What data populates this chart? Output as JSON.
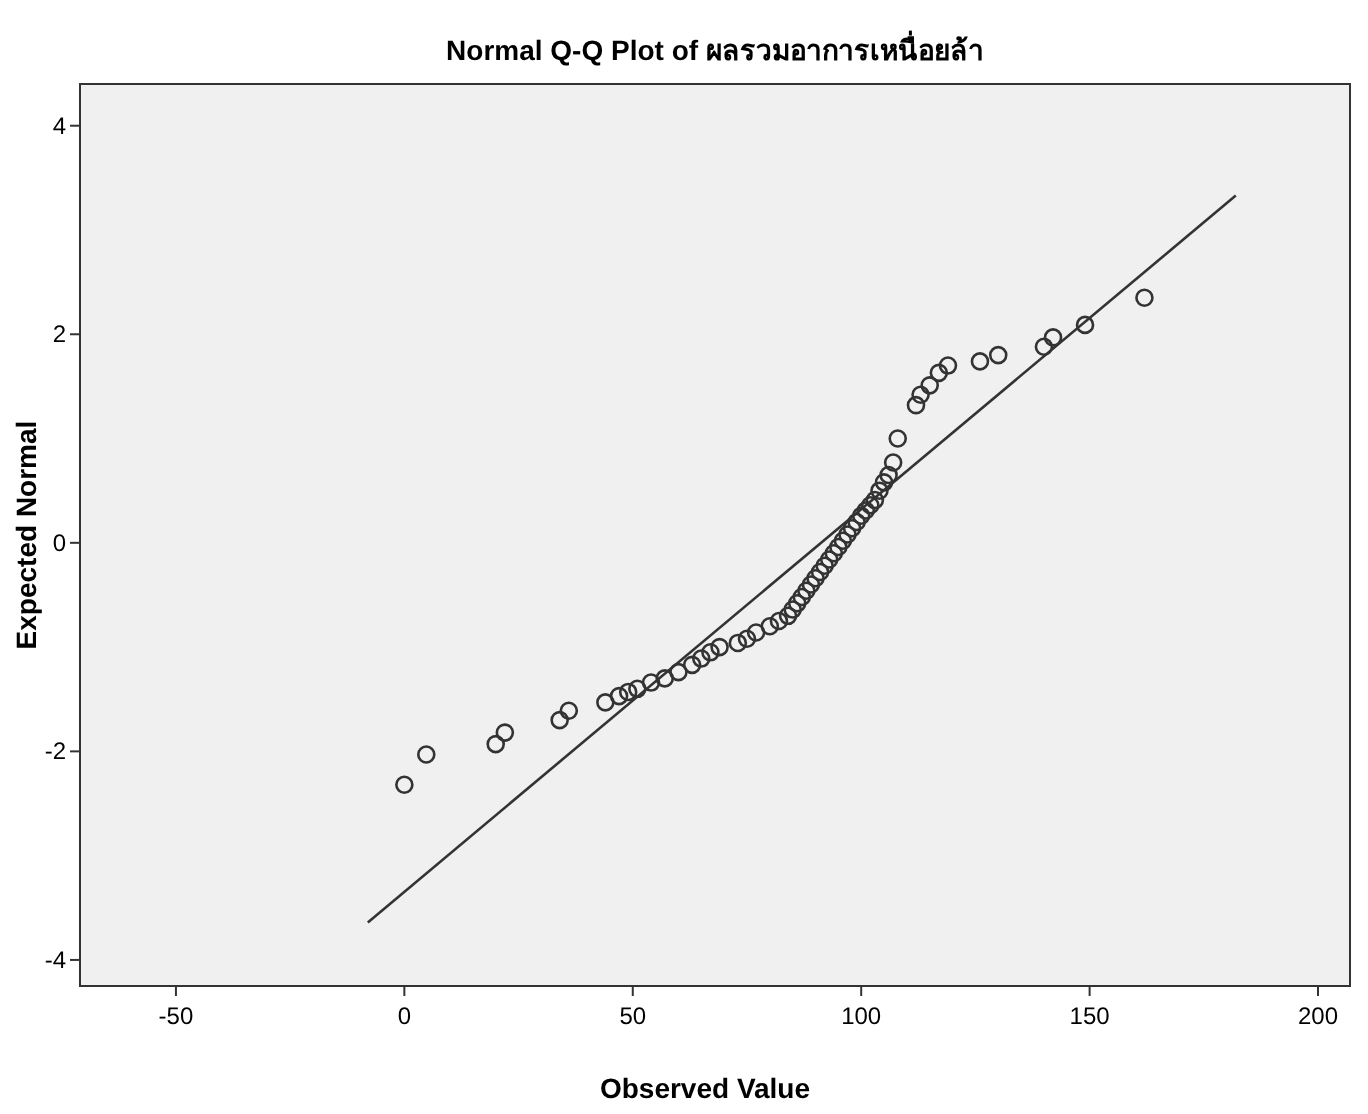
{
  "chart_data": {
    "type": "scatter",
    "title": "Normal Q-Q Plot of ผลรวมอาการเหนื่อยล้า",
    "xlabel": "Observed Value",
    "ylabel": "Expected Normal",
    "xlim": [
      -71,
      207
    ],
    "ylim": [
      -4.25,
      4.4
    ],
    "xticks": [
      -50,
      0,
      50,
      100,
      150,
      200
    ],
    "yticks": [
      -4,
      -2,
      0,
      2,
      4
    ],
    "grid": false,
    "series": [
      {
        "marker": "circle",
        "color": "#333333",
        "x": [
          0,
          4.8,
          20,
          22,
          34,
          36,
          44,
          47,
          49,
          51,
          54,
          57,
          60,
          63,
          65,
          67,
          69,
          73,
          75,
          77,
          80,
          82,
          84,
          85,
          86,
          87,
          88,
          89,
          90,
          91,
          92,
          93,
          94,
          95,
          96,
          97,
          98,
          99,
          100,
          101,
          102,
          103,
          104,
          105,
          106,
          107,
          108,
          112,
          113,
          115,
          117,
          119,
          126,
          130,
          140,
          142,
          149,
          162
        ],
        "values": [
          -2.32,
          -2.03,
          -1.93,
          -1.82,
          -1.7,
          -1.61,
          -1.53,
          -1.47,
          -1.43,
          -1.4,
          -1.34,
          -1.3,
          -1.24,
          -1.17,
          -1.11,
          -1.05,
          -1.0,
          -0.96,
          -0.92,
          -0.86,
          -0.8,
          -0.75,
          -0.7,
          -0.64,
          -0.58,
          -0.52,
          -0.46,
          -0.4,
          -0.34,
          -0.28,
          -0.22,
          -0.16,
          -0.1,
          -0.04,
          0.02,
          0.08,
          0.14,
          0.2,
          0.26,
          0.31,
          0.36,
          0.41,
          0.5,
          0.58,
          0.65,
          0.77,
          1.0,
          1.32,
          1.42,
          1.51,
          1.63,
          1.7,
          1.74,
          1.8,
          1.88,
          1.97,
          2.09,
          2.35
        ]
      },
      {
        "type": "line",
        "marker": "none",
        "color": "#333333",
        "x": [
          -8,
          182
        ],
        "values": [
          -3.64,
          3.33
        ]
      }
    ]
  }
}
